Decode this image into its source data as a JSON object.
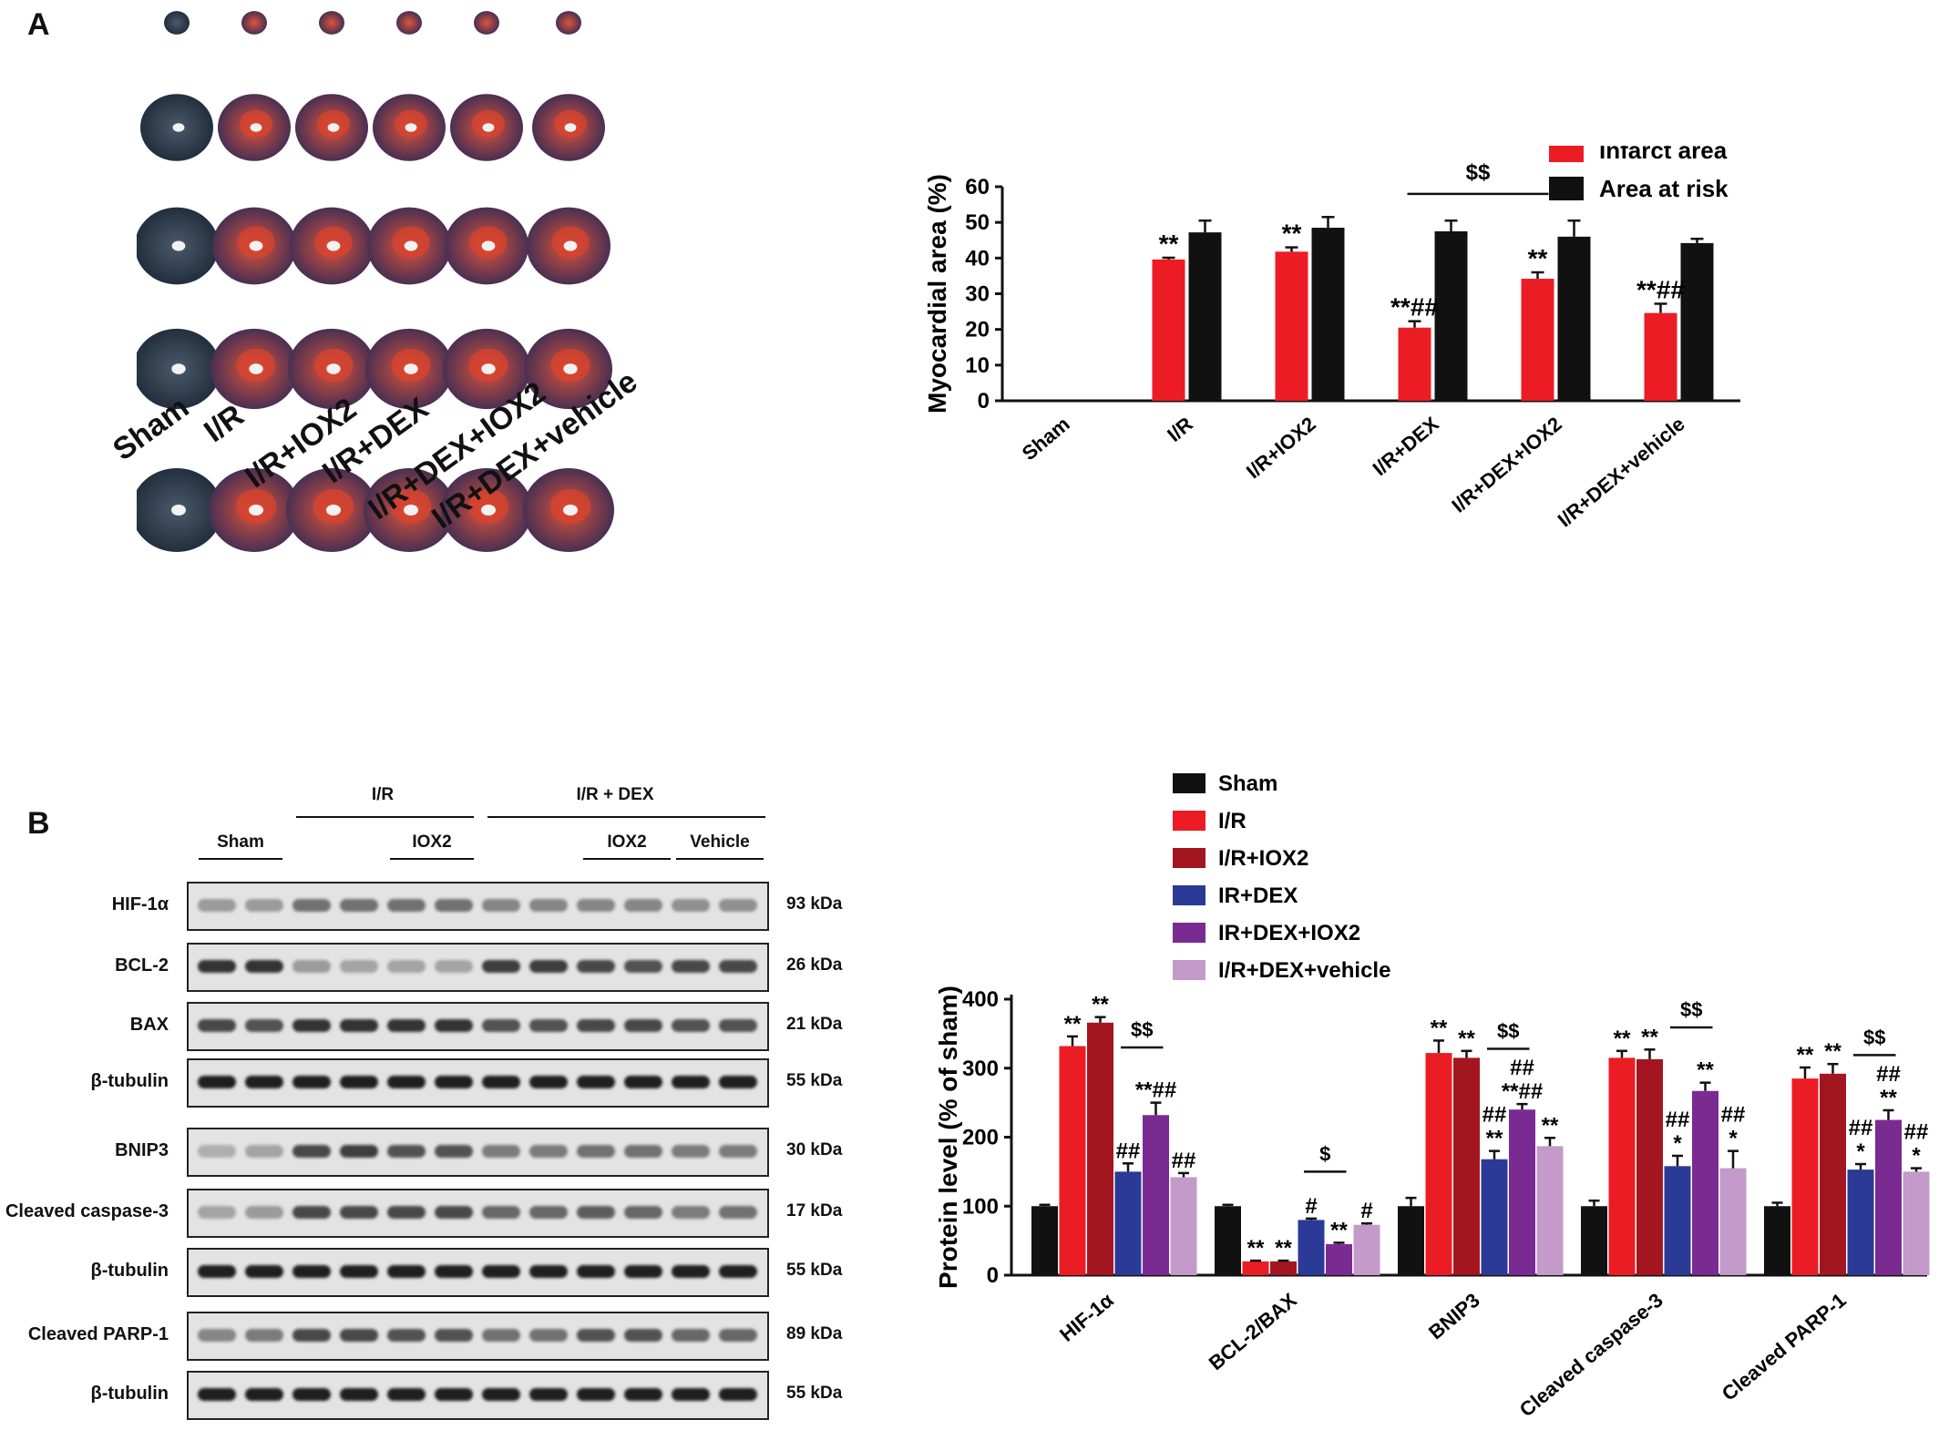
{
  "panels": {
    "a": "A",
    "b": "B"
  },
  "heart_panel": {
    "group_labels": [
      "Sham",
      "I/R",
      "I/R+IOX2",
      "I/R+DEX",
      "I/R+DEX+IOX2",
      "I/R+DEX+vehicle"
    ]
  },
  "western_blot": {
    "top_groups": [
      "I/R",
      "I/R + DEX"
    ],
    "sub_groups": [
      "Sham",
      "IOX2",
      "IOX2",
      "Vehicle"
    ],
    "rows": [
      {
        "label": "HIF-1α",
        "kda": "93 kDa"
      },
      {
        "label": "BCL-2",
        "kda": "26 kDa"
      },
      {
        "label": "BAX",
        "kda": "21 kDa"
      },
      {
        "label": "β-tubulin",
        "kda": "55 kDa"
      },
      {
        "label": "BNIP3",
        "kda": "30 kDa"
      },
      {
        "label": "Cleaved caspase-3",
        "kda": "17 kDa"
      },
      {
        "label": "β-tubulin",
        "kda": "55 kDa"
      },
      {
        "label": "Cleaved PARP-1",
        "kda": "89 kDa"
      },
      {
        "label": "β-tubulin",
        "kda": "55 kDa"
      }
    ]
  },
  "colors": {
    "black": "#111111",
    "red": "#ec1c24",
    "darkred": "#a4161f",
    "blue": "#2b3a97",
    "purple": "#7a2b91",
    "pink": "#c39ac9"
  },
  "chart_data": [
    {
      "type": "bar",
      "ylabel": "Myocardial area (%)",
      "ylim": [
        0,
        60
      ],
      "yticks": [
        0,
        10,
        20,
        30,
        40,
        50,
        60
      ],
      "categories": [
        "Sham",
        "I/R",
        "I/R+IOX2",
        "I/R+DEX",
        "I/R+DEX+IOX2",
        "I/R+DEX+vehicle"
      ],
      "series": [
        {
          "name": "Infarct area",
          "color": "#ec1c24",
          "values": [
            0,
            39.6,
            41.8,
            20.5,
            34.2,
            24.6
          ],
          "errors": [
            0,
            0.5,
            1.2,
            1.8,
            1.8,
            2.6
          ]
        },
        {
          "name": "Area at risk",
          "color": "#111111",
          "values": [
            0,
            47.2,
            48.5,
            47.5,
            46.0,
            44.2
          ],
          "errors": [
            0,
            3.3,
            3.0,
            3.0,
            4.5,
            1.2
          ]
        }
      ],
      "annotations": {
        "infarct": [
          "",
          "**",
          "**",
          "**##",
          "**",
          "**##"
        ],
        "bracket": "$$"
      },
      "legend_position": "top-right"
    },
    {
      "type": "bar",
      "ylabel": "Protein level (% of sham)",
      "ylim": [
        0,
        400
      ],
      "yticks": [
        0,
        100,
        200,
        300,
        400
      ],
      "categories": [
        "HIF-1α",
        "BCL-2/BAX",
        "BNIP3",
        "Cleaved caspase-3",
        "Cleaved PARP-1"
      ],
      "series": [
        {
          "name": "Sham",
          "color": "#111111",
          "values": [
            100,
            100,
            100,
            100,
            100
          ],
          "errors": [
            2,
            2,
            12,
            8,
            5
          ]
        },
        {
          "name": "I/R",
          "color": "#ec1c24",
          "values": [
            332,
            20,
            322,
            315,
            285
          ],
          "errors": [
            14,
            1,
            18,
            10,
            16
          ]
        },
        {
          "name": "I/R+IOX2",
          "color": "#a4161f",
          "values": [
            366,
            20,
            315,
            313,
            292
          ],
          "errors": [
            8,
            1,
            10,
            14,
            14
          ]
        },
        {
          "name": "IR+DEX",
          "color": "#2b3a97",
          "values": [
            150,
            80,
            168,
            158,
            153
          ],
          "errors": [
            12,
            2,
            12,
            15,
            8
          ]
        },
        {
          "name": "IR+DEX+IOX2",
          "color": "#7a2b91",
          "values": [
            232,
            45,
            240,
            267,
            225
          ],
          "errors": [
            18,
            2,
            8,
            12,
            14
          ]
        },
        {
          "name": "I/R+DEX+vehicle",
          "color": "#c39ac9",
          "values": [
            142,
            73,
            187,
            155,
            150
          ],
          "errors": [
            6,
            2,
            12,
            25,
            5
          ]
        }
      ],
      "annotations": {
        "HIF-1α": [
          "",
          "**",
          "**",
          "##",
          "**##",
          "##"
        ],
        "BCL-2/BAX": [
          "",
          "**",
          "**",
          "#",
          "**",
          "#"
        ],
        "BNIP3": [
          "",
          "**",
          "**",
          "##\n**",
          "##\n**##",
          "**"
        ],
        "Cleaved caspase-3": [
          "",
          "**",
          "**",
          "##\n*",
          "**",
          "##\n*"
        ],
        "Cleaved PARP-1": [
          "",
          "**",
          "**",
          "##\n*",
          "##\n**",
          "##\n*"
        ],
        "brackets": [
          "$$",
          "$",
          "$$",
          "$$",
          "$$"
        ]
      },
      "legend_position": "top"
    }
  ]
}
